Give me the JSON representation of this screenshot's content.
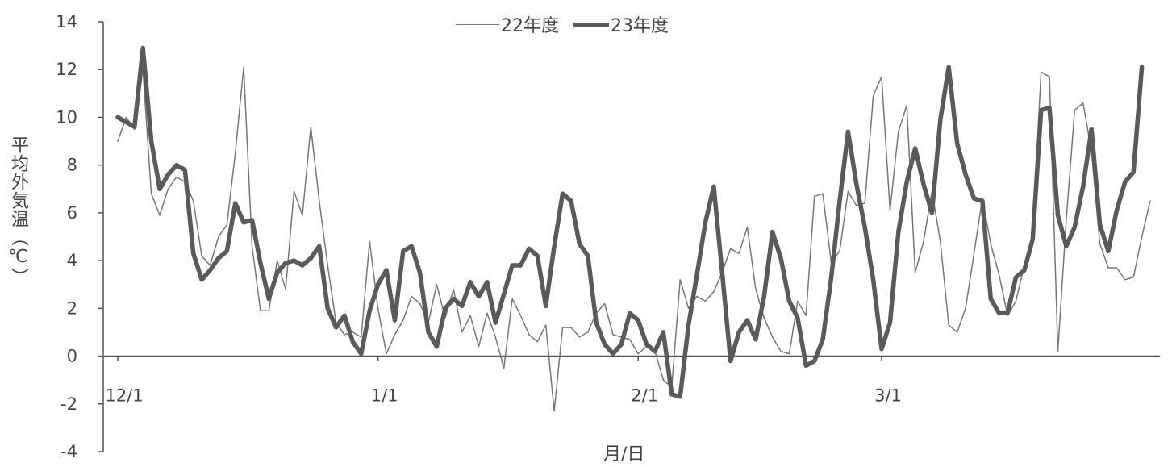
{
  "chart_data": {
    "type": "line",
    "title": "",
    "ylabel": "平均外気温（℃）",
    "xlabel": "月/日",
    "ylim": [
      -4,
      14
    ],
    "yticks": [
      -4,
      -2,
      0,
      2,
      4,
      6,
      8,
      10,
      12,
      14
    ],
    "xticks": [
      {
        "label": "12/1",
        "day": 0
      },
      {
        "label": "1/1",
        "day": 31
      },
      {
        "label": "2/1",
        "day": 62
      },
      {
        "label": "3/1",
        "day": 91
      }
    ],
    "legend_position": "top-center",
    "grid": false,
    "x_unit": "days from 12/1",
    "series": [
      {
        "name": "22年度",
        "color": "#777777",
        "width": 1.5,
        "values": [
          9.0,
          10.0,
          9.5,
          12.0,
          6.8,
          5.9,
          7.0,
          7.5,
          7.3,
          6.5,
          4.2,
          3.8,
          5.0,
          5.5,
          8.5,
          12.1,
          4.6,
          1.9,
          1.9,
          4.0,
          2.8,
          6.9,
          5.9,
          9.6,
          6.5,
          3.8,
          1.4,
          0.9,
          1.0,
          0.8,
          4.8,
          2.0,
          0.1,
          0.9,
          1.5,
          2.5,
          2.2,
          1.4,
          3.0,
          1.6,
          2.8,
          1.0,
          1.7,
          0.4,
          1.8,
          0.8,
          -0.5,
          2.4,
          1.7,
          0.9,
          0.6,
          1.3,
          -2.3,
          1.2,
          1.2,
          0.8,
          1.0,
          1.8,
          2.2,
          0.9,
          0.8,
          0.7,
          0.1,
          0.4,
          0.2,
          -1.0,
          -1.3,
          3.2,
          2.0,
          2.5,
          2.3,
          2.7,
          3.5,
          4.5,
          4.3,
          5.4,
          2.8,
          1.6,
          0.8,
          0.2,
          0.1,
          2.3,
          1.7,
          6.7,
          6.8,
          3.9,
          4.4,
          6.9,
          6.3,
          6.4,
          10.9,
          11.7,
          6.1,
          9.4,
          10.5,
          3.5,
          4.8,
          6.9,
          4.8,
          1.3,
          1.0,
          2.0,
          4.3,
          6.6,
          4.7,
          3.4,
          1.7,
          2.3,
          3.8,
          5.1,
          11.9,
          11.7,
          0.2,
          5.7,
          10.3,
          10.6,
          8.6,
          4.7,
          3.7,
          3.7,
          3.2,
          3.3,
          5.0,
          6.5
        ]
      },
      {
        "name": "23年度",
        "color": "#5a5a5a",
        "width": 5.5,
        "values": [
          10.0,
          9.8,
          9.6,
          12.9,
          9.0,
          7.0,
          7.6,
          8.0,
          7.8,
          4.3,
          3.2,
          3.6,
          4.1,
          4.4,
          6.4,
          5.6,
          5.7,
          3.9,
          2.4,
          3.5,
          3.9,
          4.0,
          3.8,
          4.1,
          4.6,
          2.0,
          1.2,
          1.7,
          0.6,
          0.1,
          1.9,
          3.0,
          3.6,
          1.5,
          4.4,
          4.6,
          3.5,
          1.0,
          0.4,
          2.0,
          2.4,
          2.1,
          3.1,
          2.5,
          3.1,
          1.4,
          2.6,
          3.8,
          3.8,
          4.5,
          4.2,
          2.1,
          4.6,
          6.8,
          6.5,
          4.7,
          4.2,
          1.4,
          0.5,
          0.1,
          0.5,
          1.8,
          1.5,
          0.5,
          0.2,
          1.0,
          -1.6,
          -1.7,
          1.3,
          3.4,
          5.6,
          7.1,
          3.5,
          -0.2,
          1.0,
          1.5,
          0.7,
          2.5,
          5.2,
          4.1,
          2.3,
          1.6,
          -0.4,
          -0.2,
          0.7,
          3.3,
          6.5,
          9.4,
          7.2,
          5.4,
          3.2,
          0.3,
          1.4,
          5.2,
          7.3,
          8.7,
          7.2,
          6.0,
          9.9,
          12.1,
          8.9,
          7.6,
          6.6,
          6.5,
          2.4,
          1.8,
          1.8,
          3.3,
          3.6,
          4.9,
          10.3,
          10.4,
          5.9,
          4.6,
          5.4,
          7.1,
          9.5,
          5.5,
          4.4,
          6.1,
          7.3,
          7.7,
          12.1
        ]
      }
    ]
  }
}
